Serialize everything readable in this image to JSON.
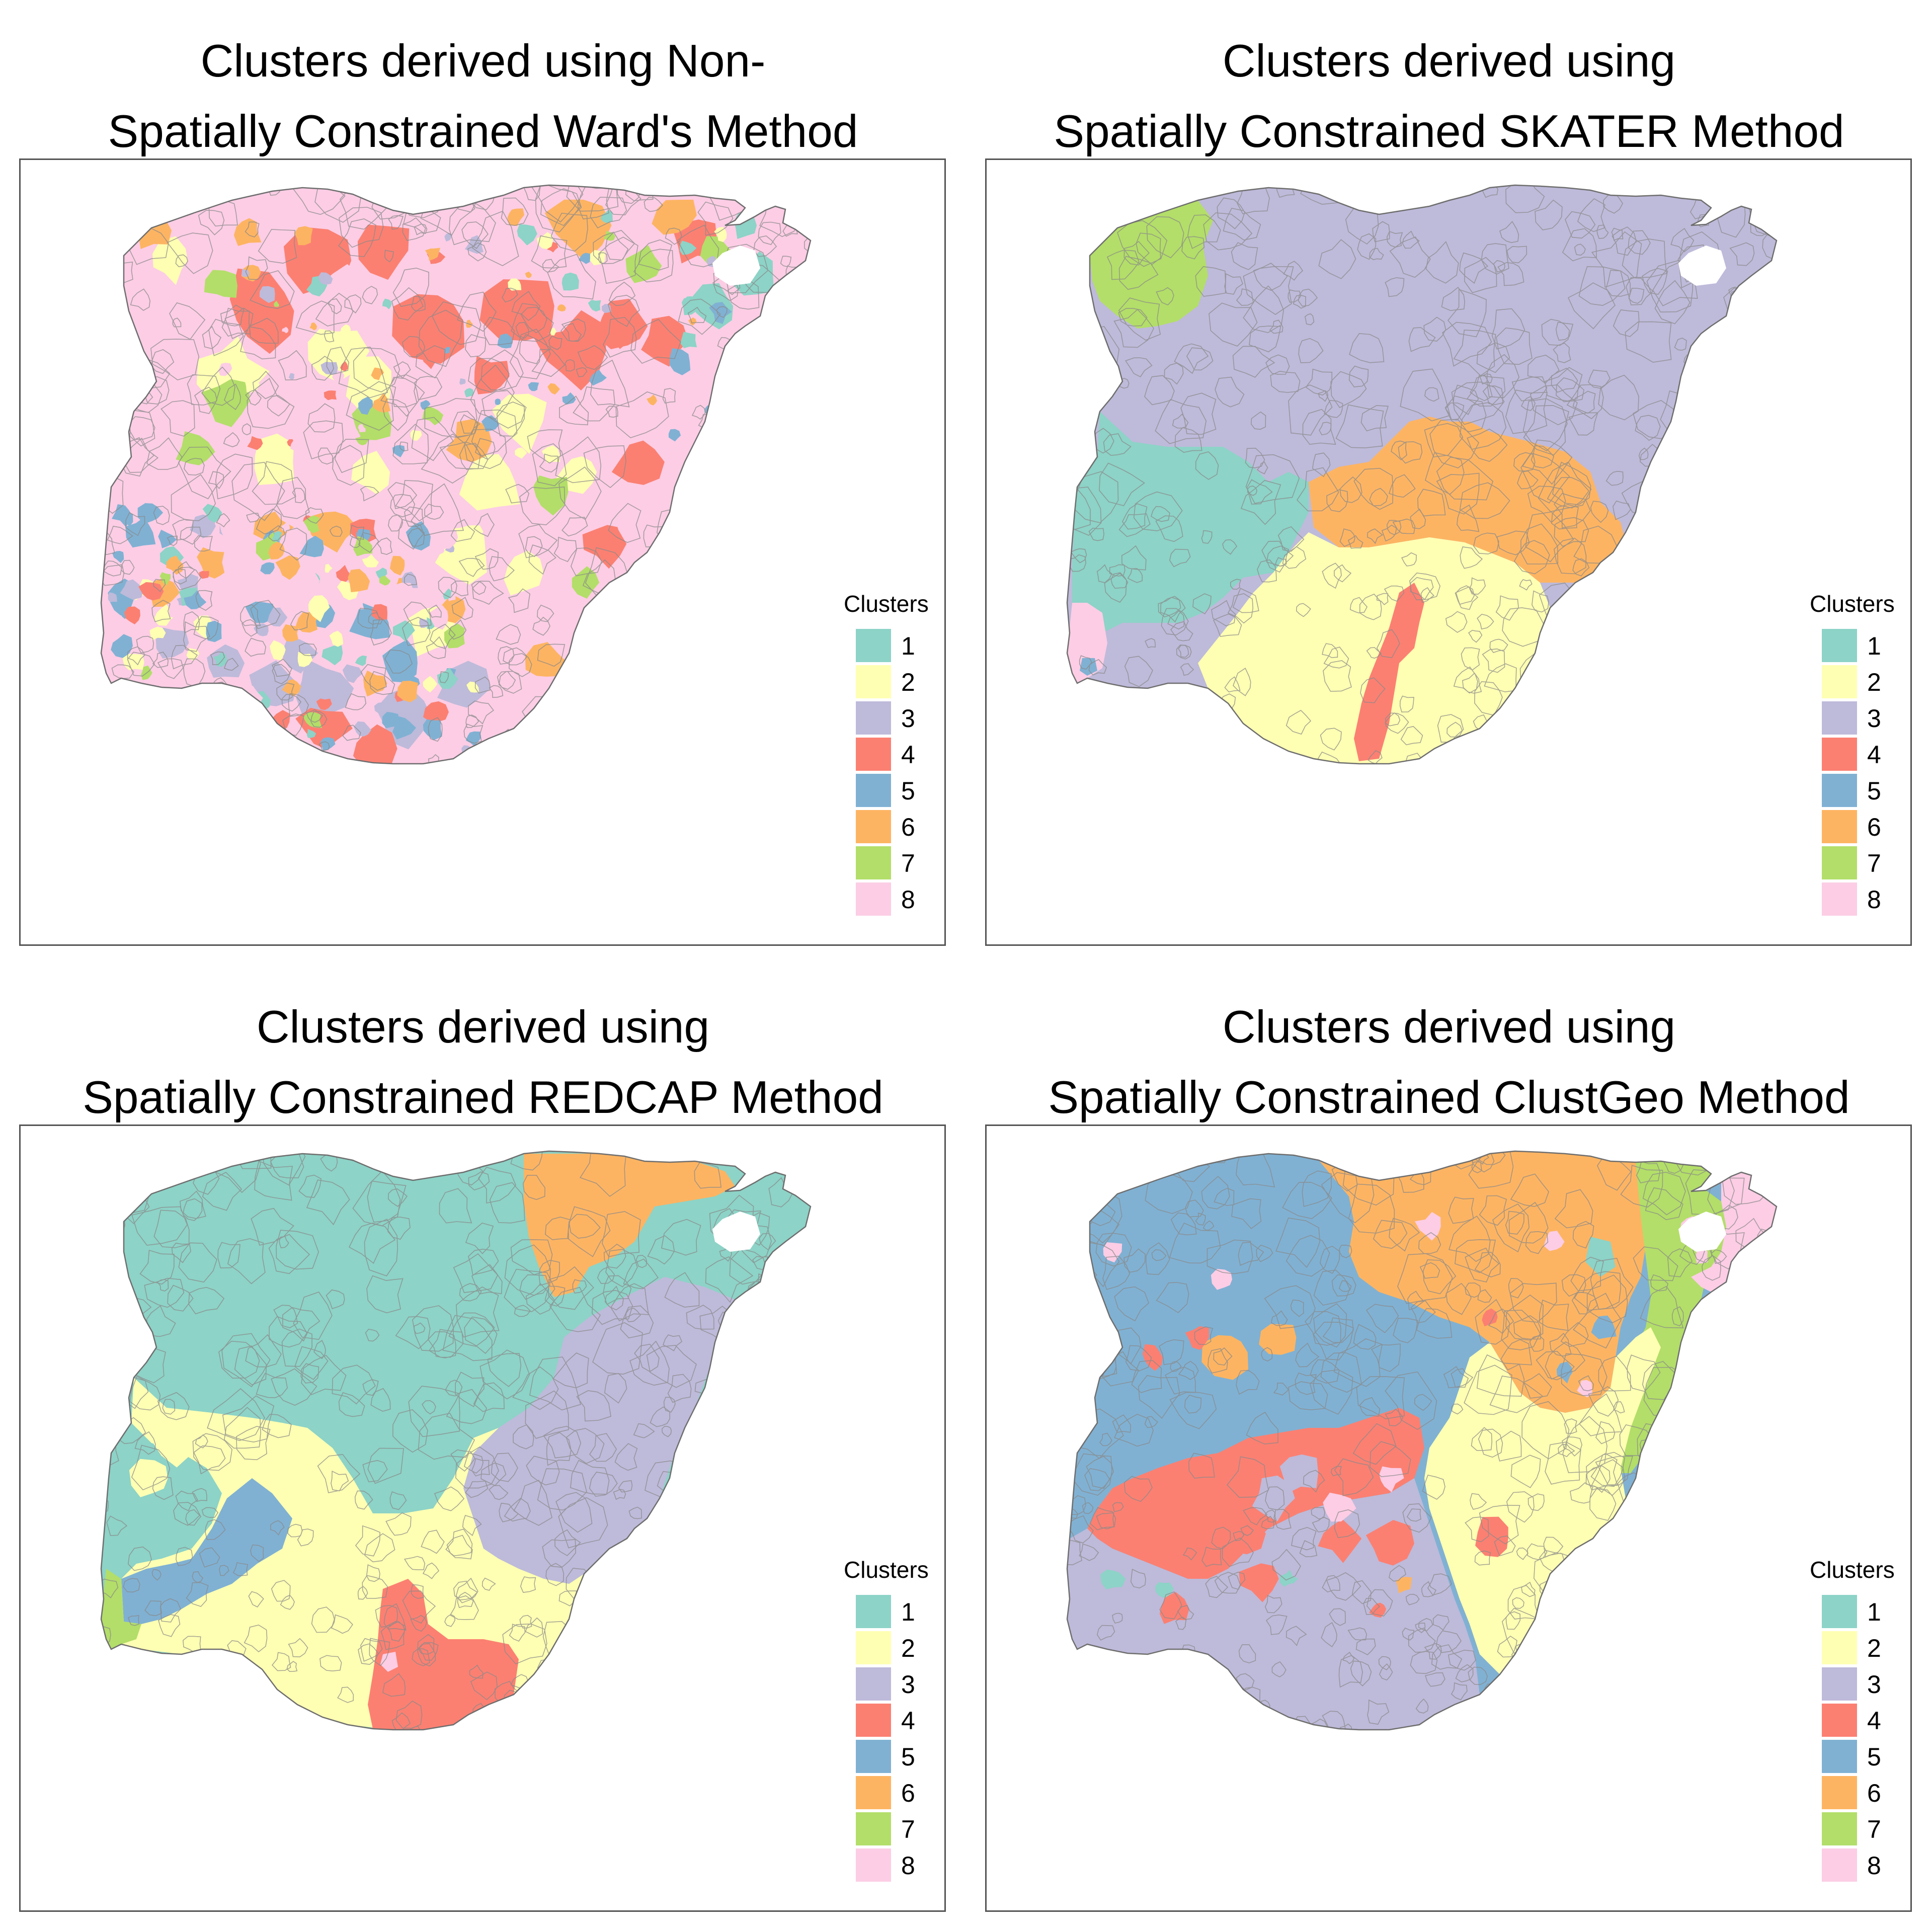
{
  "palette": [
    "#8dd3c7",
    "#ffffb3",
    "#bebada",
    "#fb8072",
    "#80b1d3",
    "#fdb462",
    "#b3de69",
    "#fccde5"
  ],
  "legend": {
    "title": "Clusters",
    "labels": [
      "1",
      "2",
      "3",
      "4",
      "5",
      "6",
      "7",
      "8"
    ]
  },
  "panels": [
    {
      "title_line1": "Clusters derived using Non-",
      "title_line2": "Spatially Constrained Ward's Method",
      "scheme": "mixed",
      "dominant_clusters": [
        "4",
        "8",
        "2",
        "7",
        "6",
        "5",
        "3",
        "1"
      ]
    },
    {
      "title_line1": "Clusters derived using",
      "title_line2": "Spatially Constrained SKATER Method",
      "scheme": "regions",
      "dominant_clusters": [
        "3",
        "2",
        "6",
        "1",
        "7",
        "4",
        "8",
        "5"
      ]
    },
    {
      "title_line1": "Clusters derived using",
      "title_line2": "Spatially Constrained REDCAP Method",
      "scheme": "regions",
      "dominant_clusters": [
        "1",
        "3",
        "2",
        "5",
        "6",
        "4",
        "7",
        "8"
      ]
    },
    {
      "title_line1": "Clusters derived using",
      "title_line2": "Spatially Constrained ClustGeo Method",
      "scheme": "regions",
      "dominant_clusters": [
        "5",
        "6",
        "2",
        "3",
        "4",
        "7",
        "8",
        "1"
      ]
    }
  ]
}
